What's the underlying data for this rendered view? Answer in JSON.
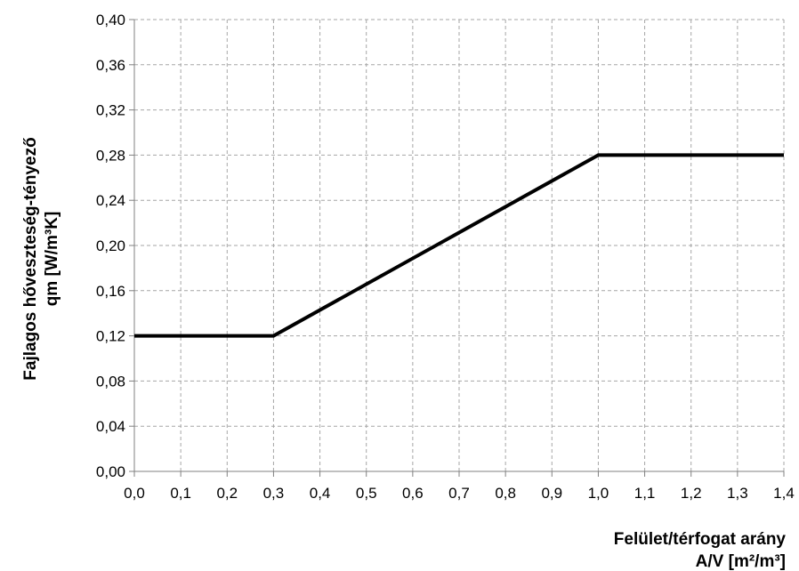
{
  "chart_data": {
    "type": "line",
    "title": "",
    "xlabel_line1": "Felület/térfogat arány",
    "xlabel_line2": "A/V [m²/m³]",
    "ylabel_line1": "Fajlagos hőveszteség-tényező",
    "ylabel_line2": "qm [W/m³K]",
    "xlim": [
      0.0,
      1.4
    ],
    "ylim": [
      0.0,
      0.4
    ],
    "x_ticks": [
      "0,0",
      "0,1",
      "0,2",
      "0,3",
      "0,4",
      "0,5",
      "0,6",
      "0,7",
      "0,8",
      "0,9",
      "1,0",
      "1,1",
      "1,2",
      "1,3",
      "1,4"
    ],
    "y_ticks": [
      "0,00",
      "0,04",
      "0,08",
      "0,12",
      "0,16",
      "0,20",
      "0,24",
      "0,28",
      "0,32",
      "0,36",
      "0,40"
    ],
    "grid": true,
    "series": [
      {
        "x": [
          0.0,
          0.3,
          1.0,
          1.4
        ],
        "y": [
          0.12,
          0.12,
          0.28,
          0.28
        ]
      }
    ],
    "line_color": "#000000",
    "grid_color": "#a6a6a6"
  }
}
